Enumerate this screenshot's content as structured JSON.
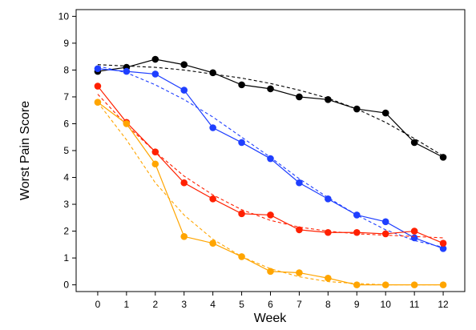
{
  "chart_data": {
    "type": "line",
    "title": "",
    "xlabel": "Week",
    "ylabel": "Worst Pain Score",
    "xlim": [
      -0.75,
      12.75
    ],
    "ylim": [
      -0.25,
      10.25
    ],
    "x": [
      0,
      1,
      2,
      3,
      4,
      5,
      6,
      7,
      8,
      9,
      10,
      11,
      12
    ],
    "xticks": [
      "0",
      "1",
      "2",
      "3",
      "4",
      "5",
      "6",
      "7",
      "8",
      "9",
      "10",
      "11",
      "12"
    ],
    "yticks": [
      "0",
      "1",
      "2",
      "3",
      "4",
      "5",
      "6",
      "7",
      "8",
      "9",
      "10"
    ],
    "grid": false,
    "legend": "none",
    "series": [
      {
        "color": "#000000",
        "observed": [
          7.95,
          8.1,
          8.4,
          8.2,
          7.9,
          7.45,
          7.3,
          7.0,
          6.9,
          6.55,
          6.4,
          5.3,
          4.75
        ],
        "fitted": [
          8.2,
          8.15,
          8.1,
          8.0,
          7.85,
          7.7,
          7.5,
          7.25,
          6.95,
          6.55,
          6.05,
          5.45,
          4.8
        ]
      },
      {
        "color": "#1f3fff",
        "observed": [
          8.05,
          7.95,
          7.85,
          7.25,
          5.85,
          5.3,
          4.7,
          3.8,
          3.2,
          2.6,
          2.35,
          1.75,
          1.35
        ],
        "fitted": [
          8.15,
          7.9,
          7.45,
          6.9,
          6.25,
          5.5,
          4.75,
          3.95,
          3.25,
          2.6,
          2.05,
          1.65,
          1.4
        ]
      },
      {
        "color": "#ff2000",
        "observed": [
          7.4,
          6.05,
          4.95,
          3.8,
          3.2,
          2.65,
          2.6,
          2.05,
          1.95,
          1.95,
          1.9,
          2.0,
          1.55
        ],
        "fitted": [
          7.1,
          5.95,
          4.95,
          4.05,
          3.35,
          2.8,
          2.4,
          2.15,
          2.0,
          1.9,
          1.85,
          1.8,
          1.75
        ]
      },
      {
        "color": "#ffa500",
        "observed": [
          6.8,
          6.0,
          4.5,
          1.8,
          1.55,
          1.05,
          0.5,
          0.45,
          0.25,
          0.0,
          0.0,
          0.0,
          0.0
        ],
        "fitted": [
          6.8,
          5.4,
          3.8,
          2.6,
          1.7,
          1.05,
          0.6,
          0.3,
          0.12,
          0.05,
          0.0,
          0.0,
          0.0
        ]
      }
    ]
  }
}
